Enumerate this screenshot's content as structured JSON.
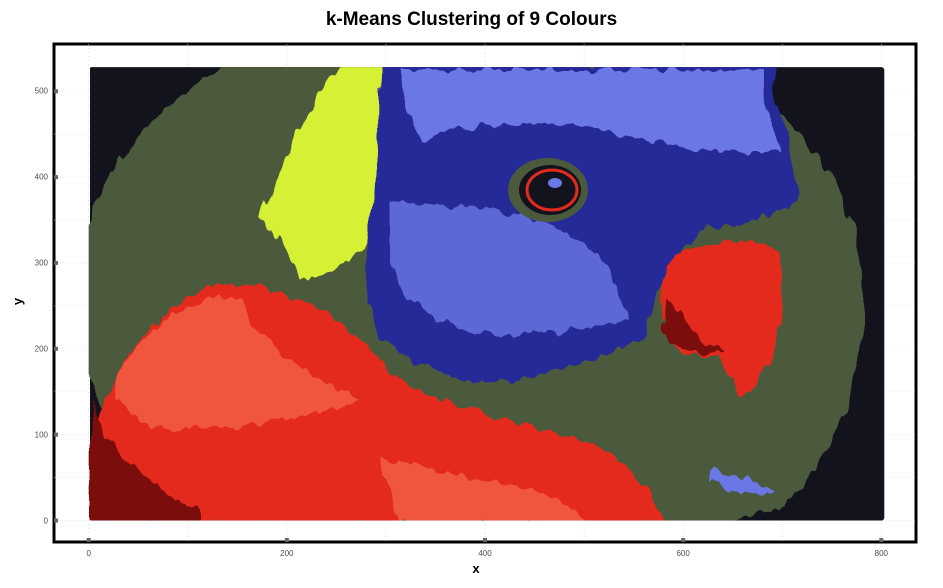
{
  "chart_data": {
    "type": "scatter",
    "title": "k-Means Clustering of 9 Colours",
    "xlabel": "x",
    "ylabel": "y",
    "xlim": [
      -35,
      835
    ],
    "ylim": [
      -25,
      555
    ],
    "x_ticks": [
      "0",
      "200",
      "400",
      "600",
      "800"
    ],
    "y_ticks": [
      "0",
      "100",
      "200",
      "300",
      "400",
      "500"
    ],
    "grid": true,
    "image_extent": {
      "x": [
        0,
        803
      ],
      "y": [
        0,
        528
      ]
    },
    "cluster_colors": [
      "#13131d",
      "#4b5a3d",
      "#252c98",
      "#6c77e6",
      "#d6f034",
      "#e32b1d",
      "#f0563e",
      "#7b0b0b",
      "#3c1416"
    ]
  }
}
